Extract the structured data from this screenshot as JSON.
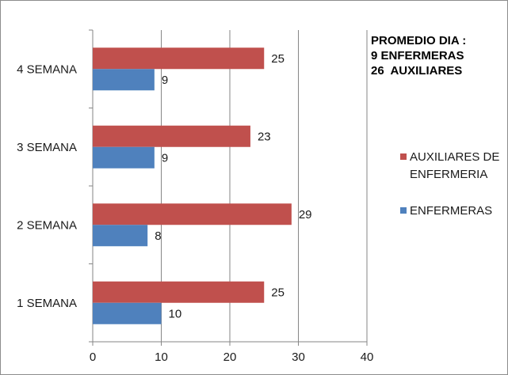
{
  "chart_data": {
    "type": "bar",
    "orientation": "horizontal",
    "categories": [
      "1 SEMANA",
      "2 SEMANA",
      "3 SEMANA",
      "4 SEMANA"
    ],
    "series": [
      {
        "name": "AUXILIARES DE ENFERMERIA",
        "values": [
          25,
          29,
          23,
          25
        ],
        "color": "#c0504d"
      },
      {
        "name": "ENFERMERAS",
        "values": [
          10,
          8,
          9,
          9
        ],
        "color": "#4f81bd"
      }
    ],
    "xlim": [
      0,
      40
    ],
    "xticks": [
      0,
      10,
      20,
      30,
      40
    ],
    "grid": true,
    "legend_position": "right",
    "annotation_lines": [
      "PROMEDIO DIA :",
      "9 ENFERMERAS",
      "26  AUXILIARES"
    ]
  }
}
